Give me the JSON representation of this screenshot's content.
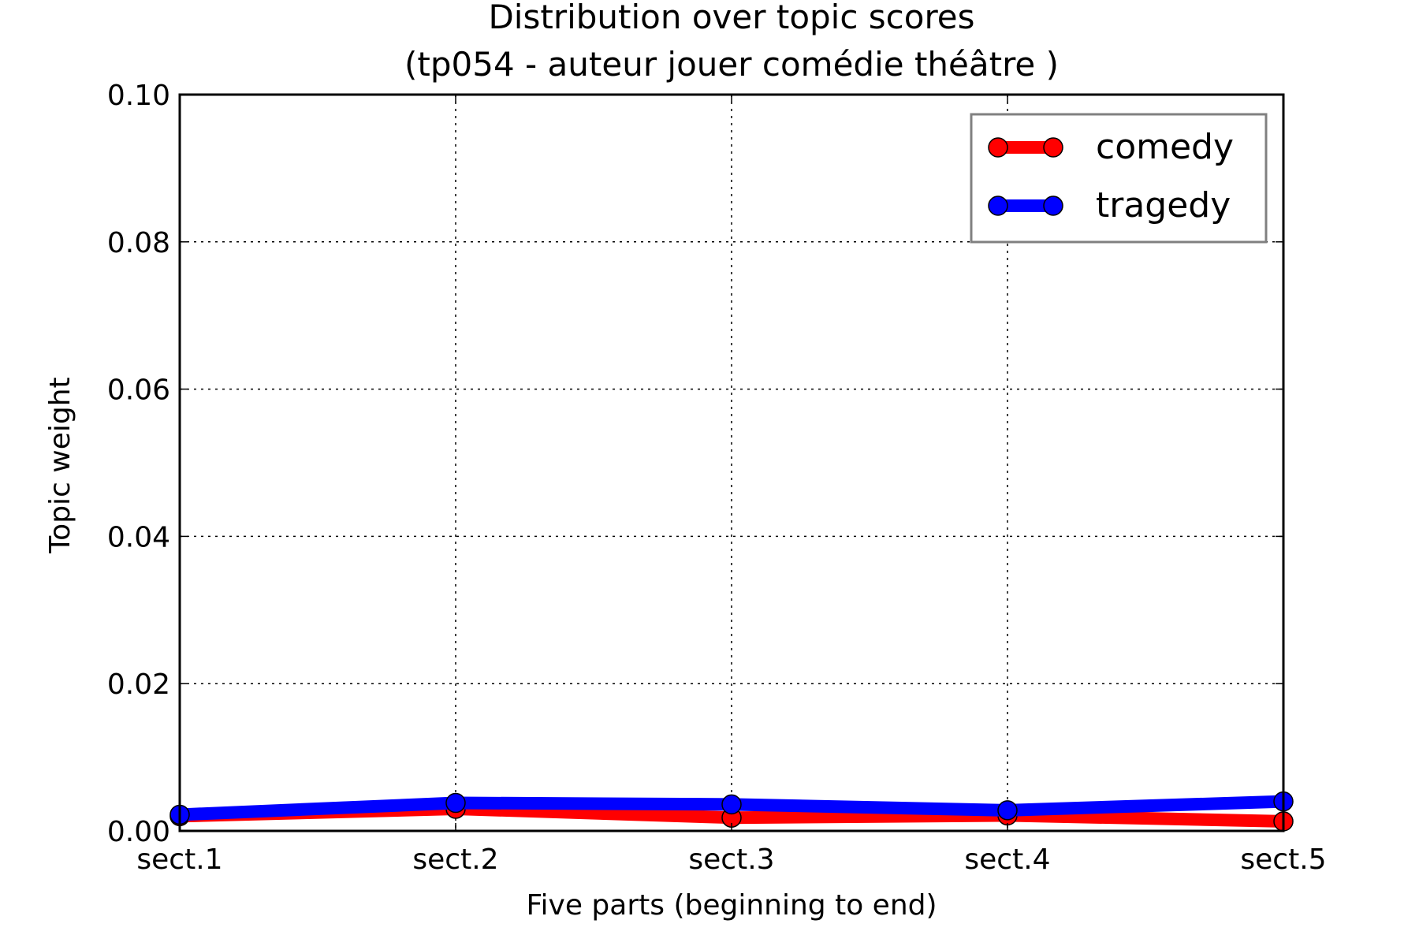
{
  "chart_data": {
    "type": "line",
    "title": [
      "Distribution over topic scores",
      "(tp054 - auteur jouer comédie théâtre )"
    ],
    "xlabel": "Five parts (beginning to end)",
    "ylabel": "Topic weight",
    "categories": [
      "sect.1",
      "sect.2",
      "sect.3",
      "sect.4",
      "sect.5"
    ],
    "ylim": [
      0,
      0.1
    ],
    "yticks": [
      "0.00",
      "0.02",
      "0.04",
      "0.06",
      "0.08",
      "0.10"
    ],
    "grid": true,
    "legend_position": "top-right",
    "series": [
      {
        "name": "comedy",
        "color": "#ff0000",
        "values": [
          0.002,
          0.003,
          0.0018,
          0.0021,
          0.0013
        ]
      },
      {
        "name": "tragedy",
        "color": "#0000ff",
        "values": [
          0.0022,
          0.0038,
          0.0036,
          0.0028,
          0.004
        ]
      }
    ]
  }
}
